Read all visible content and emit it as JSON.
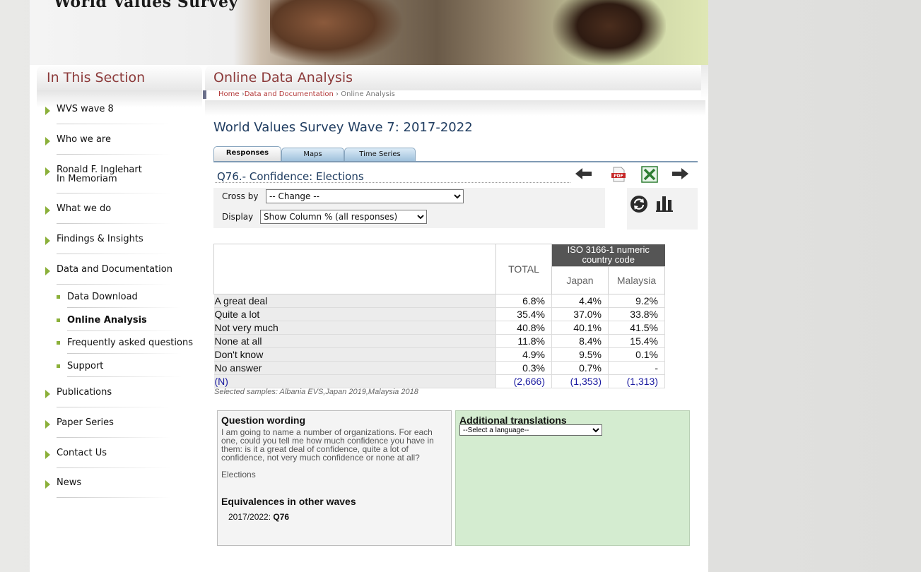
{
  "site": {
    "title": "World Values Survey"
  },
  "sidebar": {
    "heading": "In This Section",
    "items": [
      {
        "label": "WVS wave 8"
      },
      {
        "label": "Who we are"
      },
      {
        "label": "Ronald F. Inglehart",
        "label2": "In Memoriam"
      },
      {
        "label": "What we do"
      },
      {
        "label": "Findings & Insights"
      },
      {
        "label": "Data and Documentation"
      },
      {
        "label": "Publications"
      },
      {
        "label": "Paper Series"
      },
      {
        "label": "Contact Us"
      },
      {
        "label": "News"
      }
    ],
    "subitems": [
      {
        "label": "Data Download"
      },
      {
        "label": "Online Analysis",
        "active": true
      },
      {
        "label": "Frequently asked questions"
      },
      {
        "label": "Support"
      }
    ]
  },
  "main": {
    "heading": "Online Data Analysis",
    "breadcrumb": {
      "home": "Home",
      "sep1": " ›",
      "data": "Data and Documentation",
      "sep2": " › ",
      "current": "Online Analysis"
    },
    "survey_title": "World Values Survey Wave 7: 2017-2022",
    "tabs": [
      {
        "label": "Responses"
      },
      {
        "label": "Maps"
      },
      {
        "label": "Time Series"
      }
    ],
    "question_title": "Q76.- Confidence: Elections",
    "icons": [
      "arrow-left-icon",
      "pdf-icon",
      "excel-icon",
      "arrow-right-icon",
      "refresh-icon",
      "bar-chart-icon"
    ],
    "controls": {
      "crossby_label": "Cross by",
      "crossby_value": "-- Change --",
      "display_label": "Display",
      "display_value": "Show Column % (all responses)"
    },
    "table": {
      "total_header": "TOTAL",
      "group_header": "ISO 3166-1 numeric country code",
      "countries": [
        "Japan",
        "Malaysia"
      ],
      "rows": [
        {
          "label": "A great deal",
          "total": "6.8%",
          "values": [
            "4.4%",
            "9.2%"
          ]
        },
        {
          "label": "Quite a lot",
          "total": "35.4%",
          "values": [
            "37.0%",
            "33.8%"
          ]
        },
        {
          "label": "Not very much",
          "total": "40.8%",
          "values": [
            "40.1%",
            "41.5%"
          ]
        },
        {
          "label": "None at all",
          "total": "11.8%",
          "values": [
            "8.4%",
            "15.4%"
          ]
        },
        {
          "label": "Don't know",
          "total": "4.9%",
          "values": [
            "9.5%",
            "0.1%"
          ]
        },
        {
          "label": "No answer",
          "total": "0.3%",
          "values": [
            "0.7%",
            "-"
          ]
        },
        {
          "label": "(N)",
          "total": "(2,666)",
          "values": [
            "(1,353)",
            "(1,313)"
          ]
        }
      ],
      "samples": "Selected samples: Albania EVS,Japan 2019,Malaysia 2018"
    },
    "wording": {
      "heading": "Question wording",
      "text": "I am going to name a number of organizations. For each one, could you tell me how much confidence you have in them: is it a great deal of confidence, quite a lot of confidence, not very much confidence or none at all?",
      "topic": "Elections",
      "equiv_heading": "Equivalences in other waves",
      "equiv_wave": "2017/2022: ",
      "equiv_code": "Q76"
    },
    "translations": {
      "heading": "Additional translations",
      "select_value": "--Select a language--"
    }
  }
}
